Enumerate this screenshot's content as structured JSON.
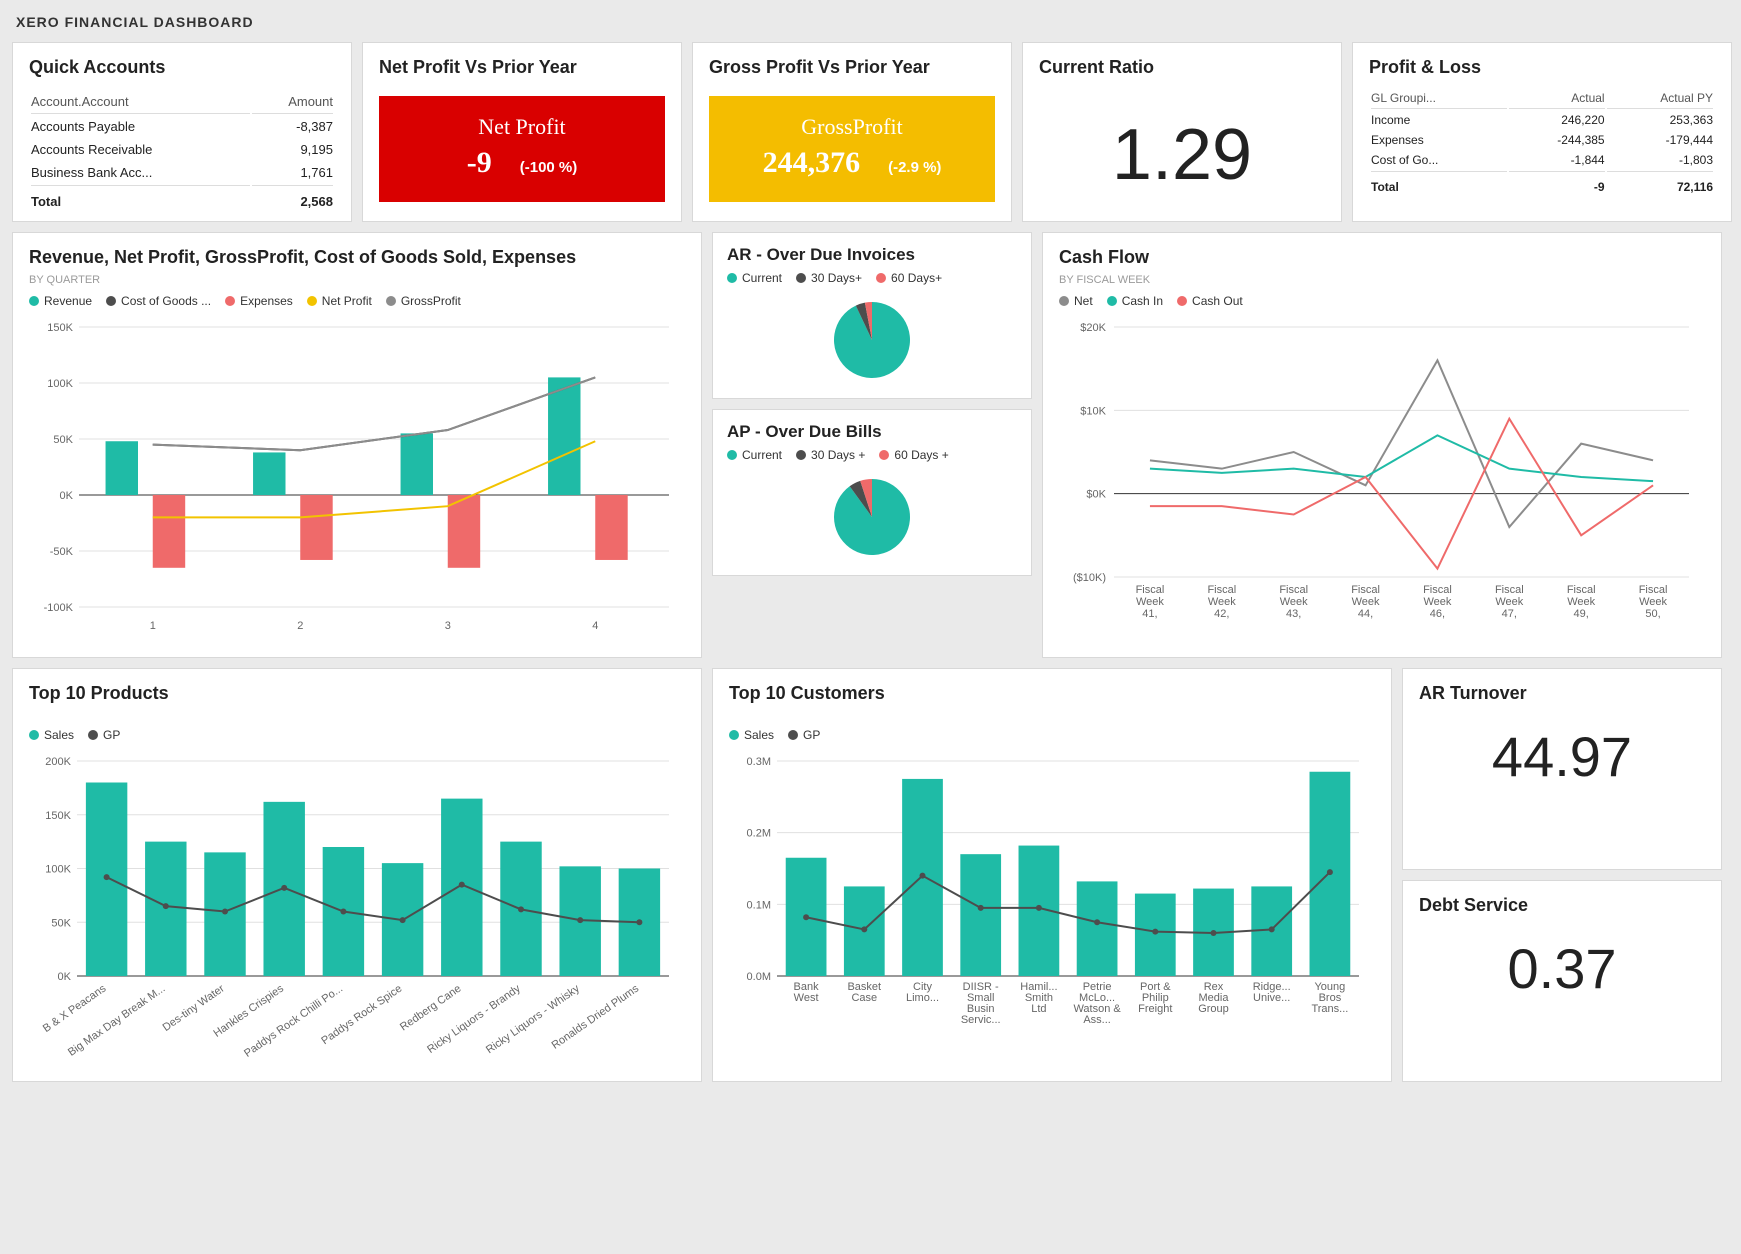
{
  "title": "XERO FINANCIAL DASHBOARD",
  "colors": {
    "teal": "#1fbba6",
    "red": "#ef6a6a",
    "yellow": "#f2c300",
    "darkgrey": "#4d4d4d",
    "grey": "#8c8c8c",
    "grid": "#e0e0e0",
    "bg_red": "#d90000",
    "bg_yellow": "#f4bd00"
  },
  "quick_accounts": {
    "title": "Quick Accounts",
    "columns": [
      "Account.Account",
      "Amount"
    ],
    "rows": [
      {
        "label": "Accounts Payable",
        "amount": "-8,387"
      },
      {
        "label": "Accounts Receivable",
        "amount": "9,195"
      },
      {
        "label": "Business Bank Acc...",
        "amount": "1,761"
      }
    ],
    "total_label": "Total",
    "total_amount": "2,568"
  },
  "net_profit": {
    "title": "Net Profit Vs Prior Year",
    "label": "Net Profit",
    "value": "-9",
    "delta": "(-100 %)",
    "bg": "#d90000"
  },
  "gross_profit": {
    "title": "Gross Profit Vs Prior Year",
    "label": "GrossProfit",
    "value": "244,376",
    "delta": "(-2.9 %)",
    "bg": "#f4bd00"
  },
  "current_ratio": {
    "title": "Current Ratio",
    "value": "1.29"
  },
  "profit_loss": {
    "title": "Profit & Loss",
    "columns": [
      "GL Groupi...",
      "Actual",
      "Actual PY"
    ],
    "rows": [
      {
        "label": "Income",
        "actual": "246,220",
        "py": "253,363"
      },
      {
        "label": "Expenses",
        "actual": "-244,385",
        "py": "-179,444"
      },
      {
        "label": "Cost of Go...",
        "actual": "-1,844",
        "py": "-1,803"
      }
    ],
    "total_label": "Total",
    "total_actual": "-9",
    "total_py": "72,116"
  },
  "row2_left": {
    "title": "Revenue, Net Profit, GrossProfit, Cost of Goods Sold, Expenses",
    "subtitle": "BY QUARTER",
    "legend": [
      {
        "label": "Revenue",
        "color": "#1fbba6"
      },
      {
        "label": "Cost of Goods ...",
        "color": "#4d4d4d"
      },
      {
        "label": "Expenses",
        "color": "#ef6a6a"
      },
      {
        "label": "Net Profit",
        "color": "#f2c300"
      },
      {
        "label": "GrossProfit",
        "color": "#8c8c8c"
      }
    ],
    "chart": {
      "type": "grouped-bar-line",
      "categories": [
        "1",
        "2",
        "3",
        "4"
      ],
      "ylim": [
        -100,
        150
      ],
      "ytick_step": 50,
      "y_labels": [
        "-100K",
        "-50K",
        "0K",
        "50K",
        "100K",
        "150K"
      ],
      "bars": {
        "revenue": {
          "values": [
            48,
            38,
            55,
            105
          ],
          "color": "#1fbba6"
        },
        "expenses": {
          "values": [
            -65,
            -58,
            -65,
            -58
          ],
          "color": "#ef6a6a"
        }
      },
      "lines": {
        "cogs": {
          "values": [
            45,
            40,
            58,
            105
          ],
          "color": "#4d4d4d"
        },
        "grossprofit": {
          "values": [
            45,
            40,
            58,
            105
          ],
          "color": "#8c8c8c"
        },
        "netprofit": {
          "values": [
            -20,
            -20,
            -10,
            48
          ],
          "color": "#f2c300"
        }
      }
    }
  },
  "ar_overdue": {
    "title": "AR - Over Due Invoices",
    "legend": [
      {
        "label": "Current",
        "color": "#1fbba6"
      },
      {
        "label": "30 Days+",
        "color": "#4d4d4d"
      },
      {
        "label": "60 Days+",
        "color": "#ef6a6a"
      }
    ],
    "slices": [
      {
        "value": 93,
        "color": "#1fbba6"
      },
      {
        "value": 4,
        "color": "#4d4d4d"
      },
      {
        "value": 3,
        "color": "#ef6a6a"
      }
    ]
  },
  "ap_overdue": {
    "title": "AP - Over Due Bills",
    "legend": [
      {
        "label": "Current",
        "color": "#1fbba6"
      },
      {
        "label": "30 Days +",
        "color": "#4d4d4d"
      },
      {
        "label": "60 Days +",
        "color": "#ef6a6a"
      }
    ],
    "slices": [
      {
        "value": 90,
        "color": "#1fbba6"
      },
      {
        "value": 5,
        "color": "#4d4d4d"
      },
      {
        "value": 5,
        "color": "#ef6a6a"
      }
    ]
  },
  "cash_flow": {
    "title": "Cash Flow",
    "subtitle": "BY FISCAL WEEK",
    "legend": [
      {
        "label": "Net",
        "color": "#8c8c8c"
      },
      {
        "label": "Cash In",
        "color": "#1fbba6"
      },
      {
        "label": "Cash Out",
        "color": "#ef6a6a"
      }
    ],
    "chart": {
      "type": "line",
      "categories": [
        "Fiscal Week 41,",
        "Fiscal Week 42,",
        "Fiscal Week 43,",
        "Fiscal Week 44,",
        "Fiscal Week 46,",
        "Fiscal Week 47,",
        "Fiscal Week 49,",
        "Fiscal Week 50,"
      ],
      "ylim": [
        -10,
        20
      ],
      "ytick_step": 10,
      "y_labels": [
        "($10K)",
        "$0K",
        "$10K",
        "$20K"
      ],
      "lines": {
        "net": {
          "values": [
            4,
            3,
            5,
            1,
            16,
            -4,
            6,
            4
          ],
          "color": "#8c8c8c"
        },
        "cashin": {
          "values": [
            3,
            2.5,
            3,
            2,
            7,
            3,
            2,
            1.5
          ],
          "color": "#1fbba6"
        },
        "cashout": {
          "values": [
            -1.5,
            -1.5,
            -2.5,
            2,
            -9,
            9,
            -5,
            1
          ],
          "color": "#ef6a6a"
        }
      }
    }
  },
  "top_products": {
    "title": "Top 10 Products",
    "legend": [
      {
        "label": "Sales",
        "color": "#1fbba6"
      },
      {
        "label": "GP",
        "color": "#4d4d4d"
      }
    ],
    "chart": {
      "type": "bar-line",
      "categories": [
        "B & X Peacans",
        "Big Max Day Break M...",
        "Des-tiny Water",
        "Hankles Crispies",
        "Paddys Rock Chilli Po...",
        "Paddys Rock Spice",
        "Redberg Cane",
        "Ricky Liquors - Brandy",
        "Ricky Liquors - Whisky",
        "Ronalds Dried Plums"
      ],
      "ylim": [
        0,
        200
      ],
      "ytick_step": 50,
      "y_labels": [
        "0K",
        "50K",
        "100K",
        "150K",
        "200K"
      ],
      "bars": {
        "values": [
          180,
          125,
          115,
          162,
          120,
          105,
          165,
          125,
          102,
          100
        ],
        "color": "#1fbba6"
      },
      "line": {
        "values": [
          92,
          65,
          60,
          82,
          60,
          52,
          85,
          62,
          52,
          50
        ],
        "color": "#4d4d4d"
      }
    }
  },
  "top_customers": {
    "title": "Top 10 Customers",
    "legend": [
      {
        "label": "Sales",
        "color": "#1fbba6"
      },
      {
        "label": "GP",
        "color": "#4d4d4d"
      }
    ],
    "chart": {
      "type": "bar-line",
      "categories": [
        "Bank West",
        "Basket Case",
        "City Limo...",
        "DIISR - Small Busin Servic...",
        "Hamil... Smith Ltd",
        "Petrie McLo... Watson & Ass...",
        "Port & Philip Freight",
        "Rex Media Group",
        "Ridge... Unive...",
        "Young Bros Trans..."
      ],
      "ylim": [
        0,
        0.3
      ],
      "ytick_step": 0.1,
      "y_labels": [
        "0.0M",
        "0.1M",
        "0.2M",
        "0.3M"
      ],
      "bars": {
        "values": [
          0.165,
          0.125,
          0.275,
          0.17,
          0.182,
          0.132,
          0.115,
          0.122,
          0.125,
          0.285
        ],
        "color": "#1fbba6"
      },
      "line": {
        "values": [
          0.082,
          0.065,
          0.14,
          0.095,
          0.095,
          0.075,
          0.062,
          0.06,
          0.065,
          0.145
        ],
        "color": "#4d4d4d"
      }
    }
  },
  "ar_turnover": {
    "title": "AR Turnover",
    "value": "44.97"
  },
  "debt_service": {
    "title": "Debt Service",
    "value": "0.37"
  }
}
